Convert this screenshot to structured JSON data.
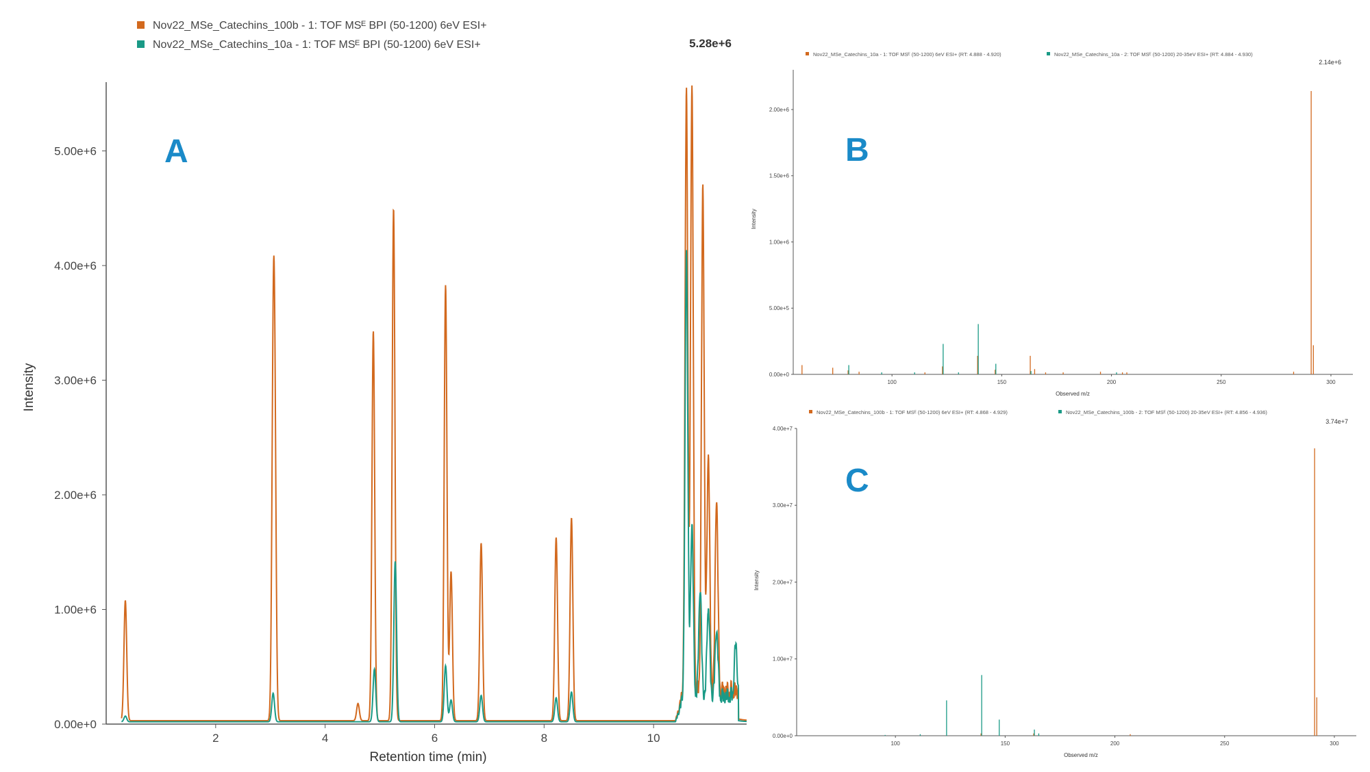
{
  "colors": {
    "orange": "#d2691e",
    "teal": "#1a9a86",
    "letter": "#1a8ac8",
    "axis": "#555555"
  },
  "chart_data": [
    {
      "id": "A",
      "type": "line",
      "panel_label": "A",
      "xlabel": "Retention time (min)",
      "ylabel": "Intensity",
      "max_label": "5.28e+6",
      "xlim": [
        0,
        11.7
      ],
      "ylim": [
        0,
        5600000
      ],
      "xticks": [
        2,
        4,
        6,
        8,
        10
      ],
      "yticks": [
        0,
        1000000,
        2000000,
        3000000,
        4000000,
        5000000
      ],
      "ytick_labels": [
        "0.00e+0",
        "1.00e+6",
        "2.00e+6",
        "3.00e+6",
        "4.00e+6",
        "5.00e+6"
      ],
      "baseline": {
        "orange": 30000,
        "teal": 20000
      },
      "series": [
        {
          "name": "Nov22_MSe_Catechins_100b - 1: TOF MSᴱ BPI (50-1200) 6eV ESI+",
          "color_key": "orange",
          "peaks": [
            [
              0.35,
              1050000
            ],
            [
              3.05,
              2600000
            ],
            [
              3.08,
              2250000
            ],
            [
              4.6,
              150000
            ],
            [
              4.88,
              3400000
            ],
            [
              5.25,
              4470000
            ],
            [
              6.2,
              3800000
            ],
            [
              6.3,
              1300000
            ],
            [
              6.85,
              1550000
            ],
            [
              8.22,
              1600000
            ],
            [
              8.5,
              1770000
            ],
            [
              10.6,
              5270000
            ],
            [
              10.7,
              5280000
            ],
            [
              10.9,
              4380000
            ],
            [
              11.0,
              2100000
            ],
            [
              11.15,
              1700000
            ]
          ],
          "hump": {
            "start": 10.4,
            "end": 11.55,
            "level": 350000
          }
        },
        {
          "name": "Nov22_MSe_Catechins_10a - 1: TOF MSᴱ BPI (50-1200) 6eV ESI+",
          "color_key": "teal",
          "peaks": [
            [
              0.35,
              50000
            ],
            [
              3.05,
              250000
            ],
            [
              4.9,
              460000
            ],
            [
              5.28,
              1400000
            ],
            [
              6.2,
              490000
            ],
            [
              6.3,
              190000
            ],
            [
              6.85,
              230000
            ],
            [
              8.22,
              210000
            ],
            [
              8.5,
              260000
            ],
            [
              10.6,
              3900000
            ],
            [
              10.7,
              1500000
            ],
            [
              10.85,
              950000
            ],
            [
              11.0,
              800000
            ],
            [
              11.15,
              600000
            ],
            [
              11.5,
              450000
            ]
          ],
          "hump": {
            "start": 10.4,
            "end": 11.55,
            "level": 300000
          }
        }
      ]
    },
    {
      "id": "B",
      "type": "bar",
      "panel_label": "B",
      "xlabel": "Observed m/z",
      "ylabel": "Intensity",
      "max_label": "2.14e+6",
      "xlim": [
        55,
        310
      ],
      "ylim": [
        0,
        2300000
      ],
      "xticks": [
        100,
        150,
        200,
        250,
        300
      ],
      "yticks": [
        0,
        500000,
        1000000,
        1500000,
        2000000
      ],
      "ytick_labels": [
        "0.00e+0",
        "5.00e+5",
        "1.00e+6",
        "1.50e+6",
        "2.00e+6"
      ],
      "series": [
        {
          "name": "Nov22_MSe_Catechins_10a - 1: TOF MSᴱ (50-1200) 6eV ESI+ (RT: 4.888 - 4.920)",
          "color_key": "orange",
          "bars": [
            [
              59,
              70000
            ],
            [
              73,
              50000
            ],
            [
              80,
              30000
            ],
            [
              85,
              20000
            ],
            [
              115,
              15000
            ],
            [
              123,
              60000
            ],
            [
              139,
              140000
            ],
            [
              147,
              35000
            ],
            [
              163,
              140000
            ],
            [
              165,
              40000
            ],
            [
              170,
              15000
            ],
            [
              178,
              15000
            ],
            [
              195,
              20000
            ],
            [
              205,
              15000
            ],
            [
              207,
              15000
            ],
            [
              283,
              20000
            ],
            [
              291,
              2140000
            ],
            [
              292,
              220000
            ]
          ]
        },
        {
          "name": "Nov22_MSe_Catechins_10a - 2: TOF MSᴱ (50-1200) 20-35eV ESI+ (RT: 4.884 - 4.930)",
          "color_key": "teal",
          "bars": [
            [
              80,
              70000
            ],
            [
              95,
              15000
            ],
            [
              110,
              15000
            ],
            [
              123,
              230000
            ],
            [
              130,
              15000
            ],
            [
              139,
              380000
            ],
            [
              147,
              80000
            ],
            [
              163,
              25000
            ],
            [
              202,
              15000
            ]
          ]
        }
      ]
    },
    {
      "id": "C",
      "type": "bar",
      "panel_label": "C",
      "xlabel": "Observed m/z",
      "ylabel": "Intensity",
      "max_label": "3.74e+7",
      "xlim": [
        55,
        310
      ],
      "ylim": [
        0,
        40000000
      ],
      "xticks": [
        100,
        150,
        200,
        250,
        300
      ],
      "yticks": [
        0,
        10000000,
        20000000,
        30000000,
        40000000
      ],
      "ytick_labels": [
        "0.00e+0",
        "1.00e+7",
        "2.00e+7",
        "3.00e+7",
        "4.00e+7"
      ],
      "series": [
        {
          "name": "Nov22_MSe_Catechins_100b - 1: TOF MSᴱ (50-1200) 6eV ESI+ (RT: 4.868 - 4.929)",
          "color_key": "orange",
          "bars": [
            [
              139,
              300000
            ],
            [
              163,
              300000
            ],
            [
              207,
              200000
            ],
            [
              291,
              37400000
            ],
            [
              292,
              5000000
            ]
          ]
        },
        {
          "name": "Nov22_MSe_Catechins_100b - 2: TOF MSᴱ (50-1200) 20-35eV ESI+ (RT: 4.856 - 4.936)",
          "color_key": "teal",
          "bars": [
            [
              95,
              100000
            ],
            [
              111,
              200000
            ],
            [
              123,
              4600000
            ],
            [
              139,
              7900000
            ],
            [
              147,
              2100000
            ],
            [
              163,
              800000
            ],
            [
              165,
              300000
            ]
          ]
        }
      ]
    }
  ]
}
